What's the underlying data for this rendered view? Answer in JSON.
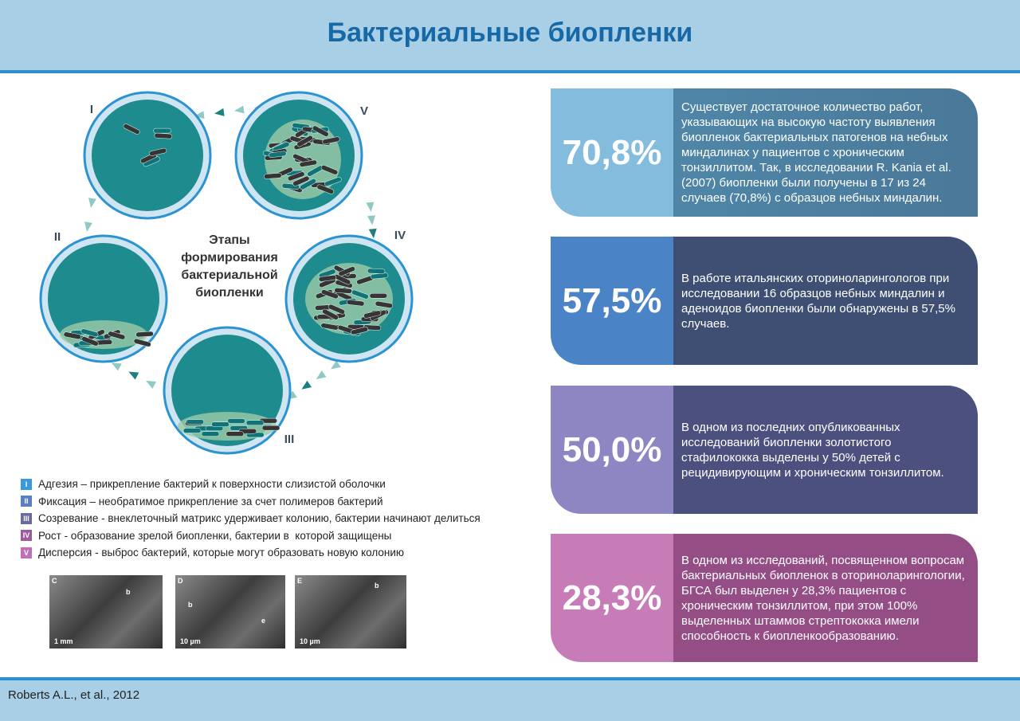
{
  "header": {
    "title": "Бактериальные биопленки"
  },
  "diagram": {
    "stages": [
      "I",
      "II",
      "III",
      "IV",
      "V"
    ],
    "center_label": [
      "Этапы",
      "формирования",
      "бактериальной",
      "биопленки"
    ]
  },
  "legend": [
    {
      "badge": "I",
      "term": "Адгезия –",
      "text": " прикрепление бактерий к поверхности слизистой оболочки"
    },
    {
      "badge": "II",
      "term": "Фиксация –",
      "text": " необратимое прикрепление за счет полимеров бактерий"
    },
    {
      "badge": "III",
      "term": "Созревание",
      "text": " - внеклеточный матрикс удерживает колонию, бактерии начинают делиться"
    },
    {
      "badge": "IV",
      "term": "Рост",
      "text": " - образование зрелой биопленки, бактерии в  которой защищены"
    },
    {
      "badge": "V",
      "term": "Дисперсия",
      "text": " - выброс бактерий, которые могут образовать новую колонию"
    }
  ],
  "micrographs": [
    {
      "letter": "C",
      "scale": "1 mm",
      "marks": [
        "b"
      ]
    },
    {
      "letter": "D",
      "scale": "10 µm",
      "marks": [
        "b",
        "e"
      ]
    },
    {
      "letter": "E",
      "scale": "10 µm",
      "marks": [
        "b"
      ]
    }
  ],
  "stats": [
    {
      "value": "70,8%",
      "text": "Существует достаточное количество работ, указывающих на высокую частоту выявления биопленок бактериальных патогенов на небных миндалинах у пациентов с хроническим тонзиллитом. Так, в исследовании R. Kania et al. (2007) биопленки были получены в 17 из 24 случаев (70,8%) с образцов небных миндалин."
    },
    {
      "value": "57,5%",
      "text": "В работе итальянских оториноларингологов при исследовании 16 образцов небных миндалин и аденоидов биопленки были обнаружены в 57,5% случаев."
    },
    {
      "value": "50,0%",
      "text": "В одном из последних опубликованных исследований биопленки золотистого стафилококка выделены у 50% детей с рецидивирующим и хроническим тонзиллитом."
    },
    {
      "value": "28,3%",
      "text": "В одном из исследований, посвященном вопросам бактериальных биопленок в оториноларингологии, БГСА был выделен у 28,3% пациентов с хроническим тонзиллитом, при этом 100% выделенных штаммов стрептококка имели способность к биопленкообразованию."
    }
  ],
  "footer": {
    "source": "Roberts A.L., et al., 2012"
  }
}
